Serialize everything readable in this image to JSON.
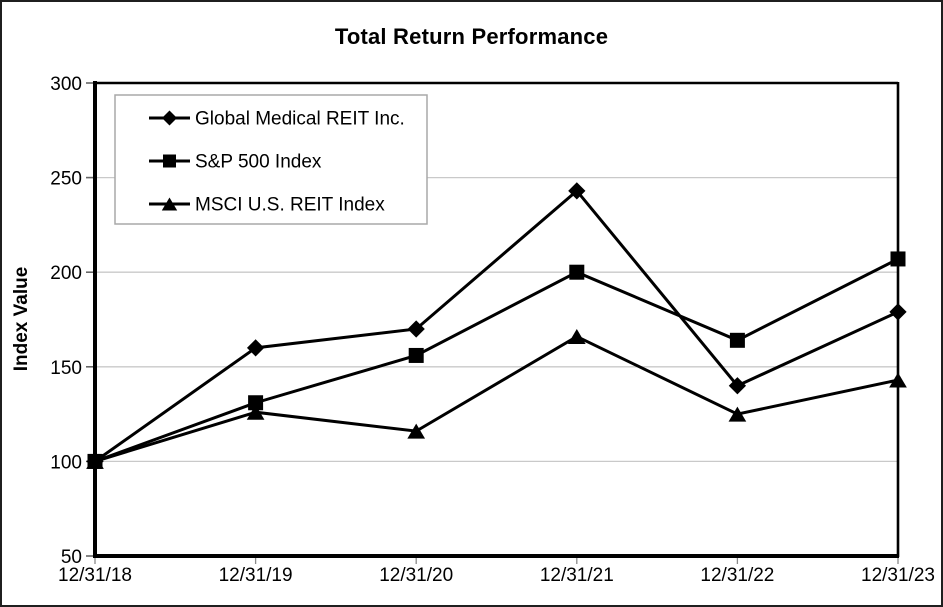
{
  "chart_data": {
    "type": "line",
    "title": "Total Return Performance",
    "xlabel": "",
    "ylabel": "Index Value",
    "categories": [
      "12/31/18",
      "12/31/19",
      "12/31/20",
      "12/31/21",
      "12/31/22",
      "12/31/23"
    ],
    "series": [
      {
        "name": "Global Medical REIT Inc.",
        "marker": "diamond-icon",
        "values": [
          100,
          160,
          170,
          243,
          140,
          179
        ]
      },
      {
        "name": "S&P 500 Index",
        "marker": "square-icon",
        "values": [
          100,
          131,
          156,
          200,
          164,
          207
        ]
      },
      {
        "name": "MSCI U.S. REIT Index",
        "marker": "triangle-icon",
        "values": [
          100,
          126,
          116,
          166,
          125,
          143
        ]
      }
    ],
    "ylim": [
      50,
      300
    ],
    "yticks": [
      50,
      100,
      150,
      200,
      250,
      300
    ],
    "grid": true,
    "legend_position": "top-left-inside",
    "colors": {
      "line": "#000000",
      "grid": "#c9c9c9",
      "axis_frame": "#000000",
      "legend_border": "#a8a8a8",
      "legend_background": "#ffffff",
      "tick": "#8a8a8a"
    }
  }
}
